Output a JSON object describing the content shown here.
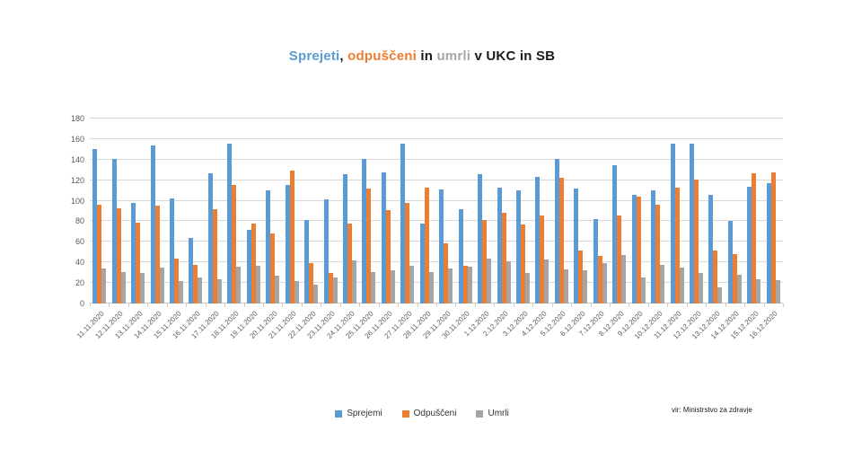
{
  "title": {
    "segments": [
      {
        "text": "Sprejeti",
        "color": "#5B9BD5"
      },
      {
        "text": ", ",
        "color": "#1a1a1a"
      },
      {
        "text": "odpuščeni",
        "color": "#ED7D31"
      },
      {
        "text": " in ",
        "color": "#1a1a1a"
      },
      {
        "text": "umrli",
        "color": "#A6A6A6"
      },
      {
        "text": " v UKC in SB",
        "color": "#1a1a1a"
      }
    ]
  },
  "legend": {
    "items": [
      {
        "label": "Sprejemi",
        "color": "#5B9BD5"
      },
      {
        "label": "Odpuščeni",
        "color": "#ED7D31"
      },
      {
        "label": "Umrli",
        "color": "#A5A5A5"
      }
    ]
  },
  "source_note": "vir: Ministrstvo za zdravje",
  "colors": {
    "background": "#FFFFFF",
    "gridline": "#D9D9D9",
    "axis_text": "#595959"
  },
  "chart_data": {
    "type": "bar",
    "title": "Sprejeti, odpuščeni in umrli v UKC in SB",
    "xlabel": "",
    "ylabel": "",
    "ylim": [
      0,
      180
    ],
    "ytick_step": 20,
    "grid": true,
    "legend_position": "bottom",
    "categories": [
      "11.11.2020",
      "12.11.2020",
      "13.11.2020",
      "14.11.2020",
      "15.11.2020",
      "16.11.2020",
      "17.11.2020",
      "18.11.2020",
      "19.11.2020",
      "20.11.2020",
      "21.11.2020",
      "22.11.2020",
      "23.11.2020",
      "24.11.2020",
      "25.11.2020",
      "26.11.2020",
      "27.11.2020",
      "28.11.2020",
      "29.11.2020",
      "30.11.2020",
      "1.12.2020",
      "2.12.2020",
      "3.12.2020",
      "4.12.2020",
      "5.12.2020",
      "6.12.2020",
      "7.12.2020",
      "8.12.2020",
      "9.12.2020",
      "10.12.2020",
      "11.12.2020",
      "12.12.2020",
      "13.12.2020",
      "14.12.2020",
      "15.12.2020",
      "16.12.2020"
    ],
    "series": [
      {
        "name": "Sprejemi",
        "color": "#5B9BD5",
        "values": [
          150,
          141,
          98,
          154,
          102,
          64,
          127,
          156,
          72,
          110,
          115,
          81,
          101,
          126,
          141,
          128,
          156,
          78,
          111,
          92,
          126,
          113,
          110,
          123,
          141,
          112,
          82,
          135,
          106,
          110,
          156,
          156,
          106,
          80,
          114,
          117
        ]
      },
      {
        "name": "Odpuščeni",
        "color": "#ED7D31",
        "values": [
          96,
          93,
          79,
          95,
          44,
          38,
          92,
          115,
          78,
          68,
          129,
          39,
          30,
          78,
          112,
          91,
          98,
          113,
          59,
          37,
          81,
          88,
          77,
          86,
          122,
          52,
          46,
          86,
          104,
          96,
          113,
          121,
          52,
          48,
          127,
          128
        ]
      },
      {
        "name": "Umrli",
        "color": "#A5A5A5",
        "values": [
          34,
          31,
          30,
          35,
          22,
          25,
          24,
          36,
          37,
          27,
          22,
          18,
          25,
          42,
          31,
          32,
          37,
          31,
          34,
          36,
          44,
          41,
          30,
          43,
          33,
          32,
          39,
          47,
          25,
          38,
          35,
          30,
          16,
          28,
          24,
          23
        ]
      }
    ]
  }
}
